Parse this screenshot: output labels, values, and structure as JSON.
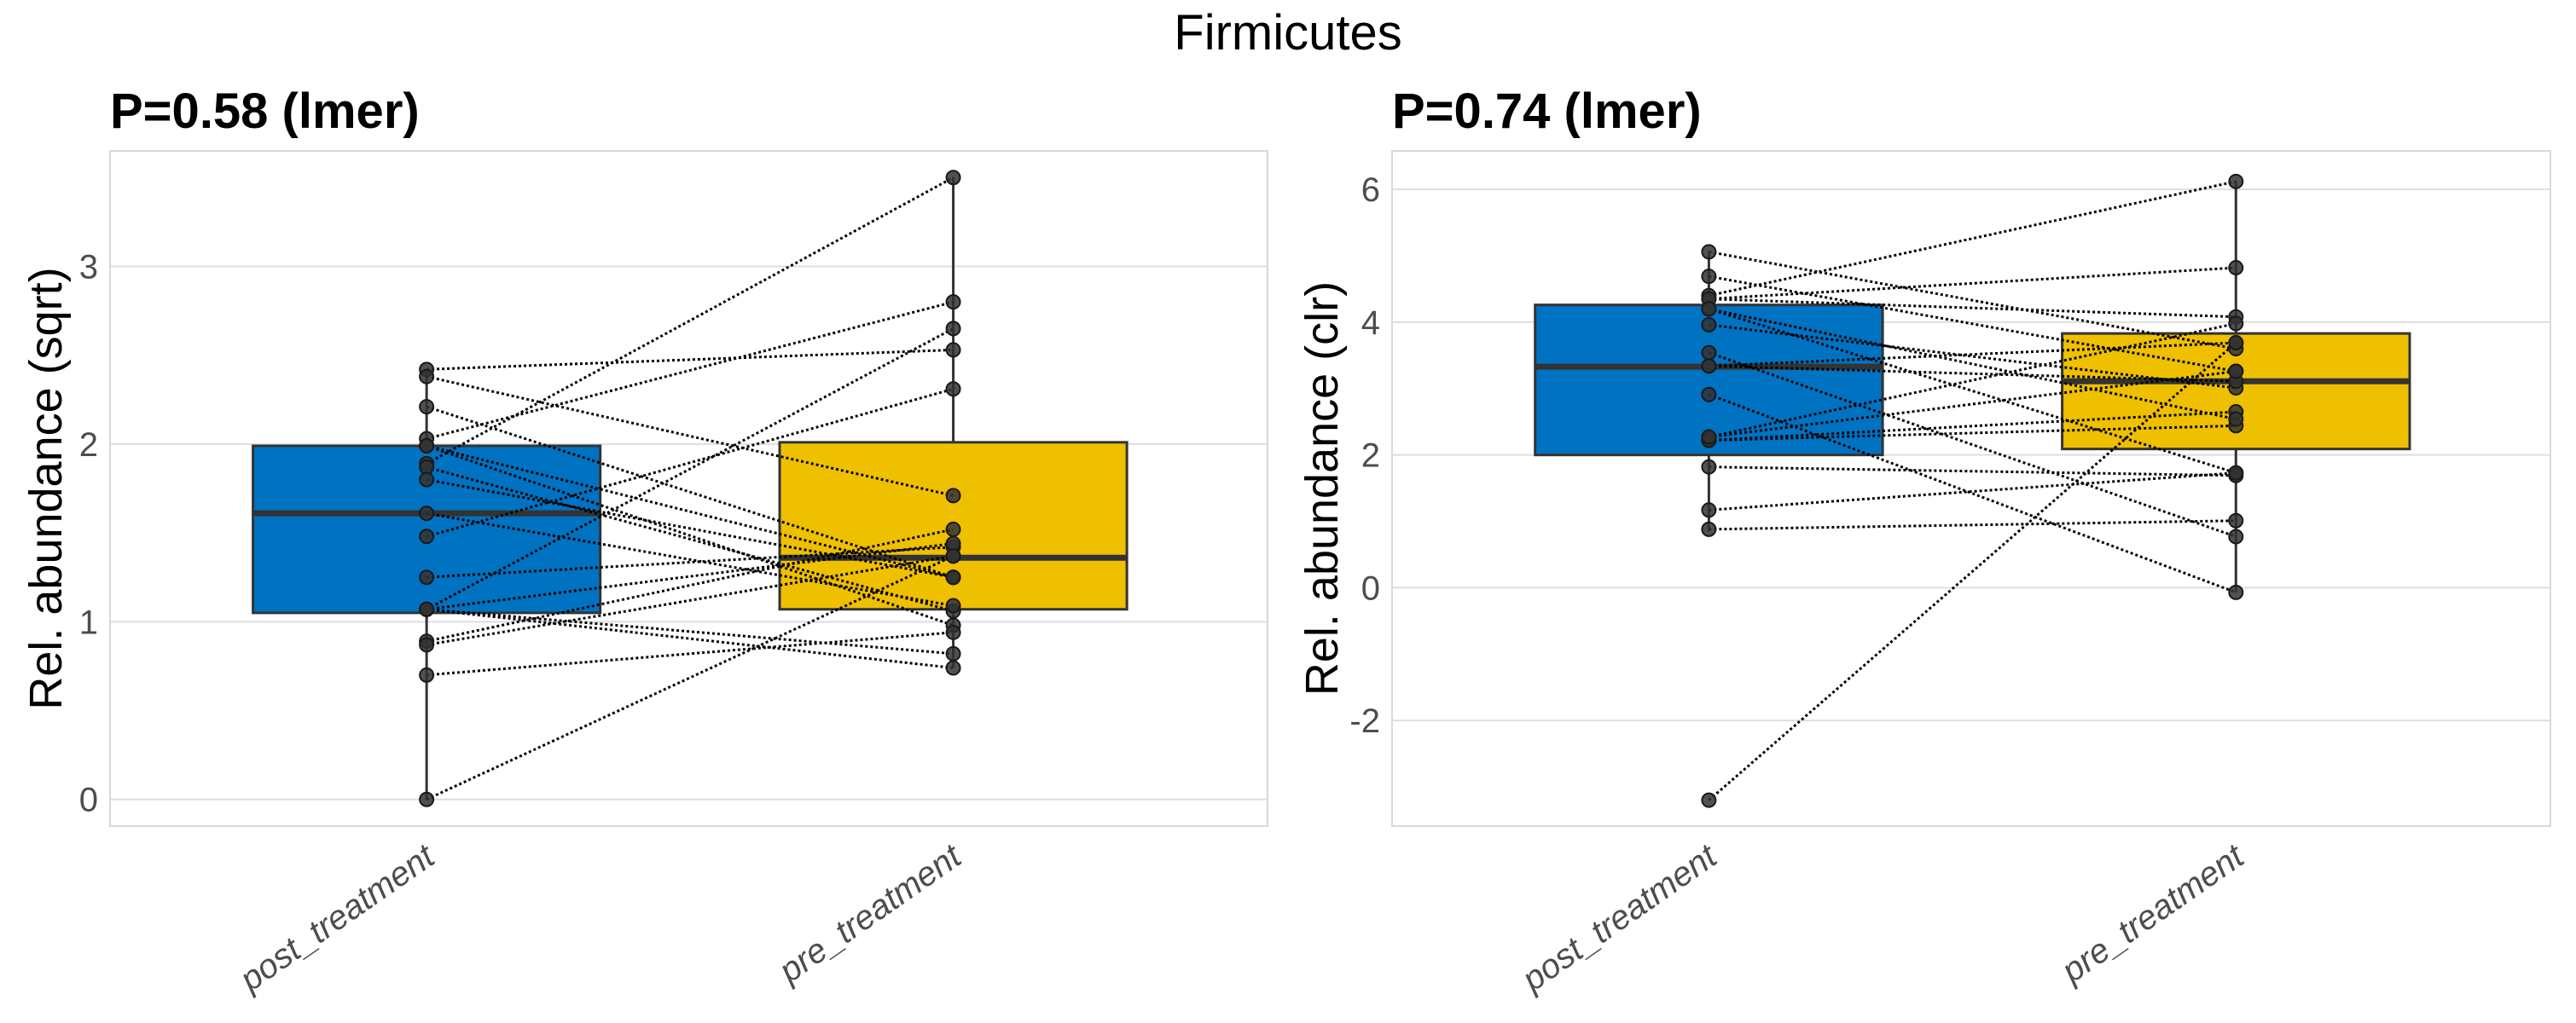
{
  "figure": {
    "title": "Firmicutes"
  },
  "chart_data": [
    {
      "type": "box",
      "title": "P=0.58 (lmer)",
      "xlabel": "",
      "ylabel": "Rel. abundance (sqrt)",
      "categories": [
        "post_treatment",
        "pre_treatment"
      ],
      "colors": [
        "#0072C2",
        "#EFC000"
      ],
      "ylim": [
        -0.15,
        3.65
      ],
      "yticks": [
        0,
        1,
        2,
        3
      ],
      "ytick_labels": [
        "0",
        "1",
        "2",
        "3"
      ],
      "grid": true,
      "boxes": [
        {
          "group": "post_treatment",
          "q1": 1.05,
          "median": 1.61,
          "q3": 1.99,
          "whisker_low": 0.0,
          "whisker_high": 2.42
        },
        {
          "group": "pre_treatment",
          "q1": 1.07,
          "median": 1.36,
          "q3": 2.01,
          "whisker_low": 0.74,
          "whisker_high": 3.5
        }
      ],
      "pairs": [
        [
          2.42,
          2.53
        ],
        [
          2.38,
          1.71
        ],
        [
          2.21,
          1.25
        ],
        [
          2.03,
          2.8
        ],
        [
          1.99,
          0.98
        ],
        [
          1.89,
          3.5
        ],
        [
          1.87,
          1.06
        ],
        [
          1.8,
          1.25
        ],
        [
          1.61,
          1.09
        ],
        [
          1.48,
          2.31
        ],
        [
          1.25,
          1.42
        ],
        [
          1.07,
          2.65
        ],
        [
          1.07,
          1.44
        ],
        [
          1.07,
          0.74
        ],
        [
          0.89,
          1.52
        ],
        [
          0.87,
          1.37
        ],
        [
          0.7,
          0.94
        ],
        [
          0.0,
          1.37
        ],
        [
          1.99,
          1.25
        ],
        [
          1.07,
          0.82
        ]
      ]
    },
    {
      "type": "box",
      "title": "P=0.74 (lmer)",
      "xlabel": "",
      "ylabel": "Rel. abundance (clr)",
      "categories": [
        "post_treatment",
        "pre_treatment"
      ],
      "colors": [
        "#0072C2",
        "#EFC000"
      ],
      "ylim": [
        -3.59,
        6.58
      ],
      "yticks": [
        -2,
        0,
        2,
        4,
        6
      ],
      "ytick_labels": [
        "-2",
        "0",
        "2",
        "4",
        "6"
      ],
      "grid": true,
      "boxes": [
        {
          "group": "post_treatment",
          "q1": 2.0,
          "median": 3.33,
          "q3": 4.26,
          "whisker_low": 0.85,
          "whisker_high": 5.06
        },
        {
          "group": "pre_treatment",
          "q1": 2.09,
          "median": 3.11,
          "q3": 3.83,
          "whisker_low": -0.07,
          "whisker_high": 6.12
        }
      ],
      "pairs": [
        [
          5.06,
          3.6
        ],
        [
          4.69,
          3.26
        ],
        [
          4.4,
          6.12
        ],
        [
          4.35,
          4.82
        ],
        [
          4.35,
          4.08
        ],
        [
          4.2,
          1.73
        ],
        [
          3.96,
          3.01
        ],
        [
          3.54,
          0.77
        ],
        [
          3.34,
          3.11
        ],
        [
          3.34,
          3.69
        ],
        [
          2.91,
          -0.07
        ],
        [
          2.27,
          3.98
        ],
        [
          2.22,
          2.44
        ],
        [
          2.22,
          2.65
        ],
        [
          1.82,
          1.69
        ],
        [
          1.17,
          1.73
        ],
        [
          0.88,
          1.01
        ],
        [
          -3.2,
          3.69
        ],
        [
          4.2,
          2.54
        ],
        [
          2.27,
          3.26
        ]
      ]
    }
  ]
}
